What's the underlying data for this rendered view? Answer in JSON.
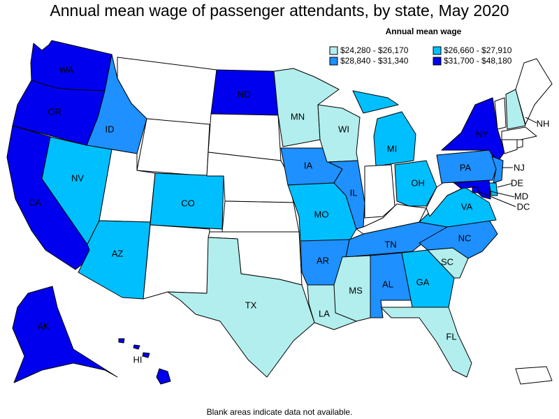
{
  "title": "Annual mean wage of passenger attendants, by state, May 2020",
  "footnote": "Blank areas indicate data not available.",
  "legend": {
    "title": "Annual mean wage",
    "bins": [
      {
        "label": "$24,280 - $26,170",
        "color": "#b2eeee"
      },
      {
        "label": "$26,660 - $27,910",
        "color": "#00bfff"
      },
      {
        "label": "$28,840 - $31,340",
        "color": "#1e90ff"
      },
      {
        "label": "$31,700 - $48,180",
        "color": "#0000ee"
      }
    ]
  },
  "colors": {
    "no_data": "#ffffff",
    "border": "#000000"
  },
  "states": {
    "WA": {
      "label": "WA",
      "bin": 3
    },
    "OR": {
      "label": "OR",
      "bin": 3
    },
    "CA": {
      "label": "CA",
      "bin": 3
    },
    "AK": {
      "label": "AK",
      "bin": 3
    },
    "HI": {
      "label": "HI",
      "bin": 3
    },
    "ND": {
      "label": "ND",
      "bin": 3
    },
    "NY": {
      "label": "NY",
      "bin": 3
    },
    "MD": {
      "label": "MD",
      "bin": 3
    },
    "DC": {
      "label": "DC",
      "bin": 3
    },
    "ID": {
      "label": "ID",
      "bin": 2
    },
    "IA": {
      "label": "IA",
      "bin": 2
    },
    "IL": {
      "label": "IL",
      "bin": 2
    },
    "AR": {
      "label": "AR",
      "bin": 2
    },
    "TN": {
      "label": "TN",
      "bin": 2
    },
    "AL": {
      "label": "AL",
      "bin": 2
    },
    "NC": {
      "label": "NC",
      "bin": 2
    },
    "PA": {
      "label": "PA",
      "bin": 2
    },
    "NJ": {
      "label": "NJ",
      "bin": 2
    },
    "NV": {
      "label": "NV",
      "bin": 1
    },
    "AZ": {
      "label": "AZ",
      "bin": 1
    },
    "CO": {
      "label": "CO",
      "bin": 1
    },
    "MO": {
      "label": "MO",
      "bin": 1
    },
    "MI": {
      "label": "MI",
      "bin": 1
    },
    "OH": {
      "label": "OH",
      "bin": 1
    },
    "VA": {
      "label": "VA",
      "bin": 1
    },
    "GA": {
      "label": "GA",
      "bin": 1
    },
    "DE": {
      "label": "DE",
      "bin": 1
    },
    "MN": {
      "label": "MN",
      "bin": 0
    },
    "WI": {
      "label": "WI",
      "bin": 0
    },
    "TX": {
      "label": "TX",
      "bin": 0
    },
    "LA": {
      "label": "LA",
      "bin": 0
    },
    "MS": {
      "label": "MS",
      "bin": 0
    },
    "SC": {
      "label": "SC",
      "bin": 0
    },
    "FL": {
      "label": "FL",
      "bin": 0
    },
    "NH": {
      "label": "NH",
      "bin": 0
    },
    "MT": {
      "bin": null
    },
    "WY": {
      "bin": null
    },
    "UT": {
      "bin": null
    },
    "NM": {
      "bin": null
    },
    "SD": {
      "bin": null
    },
    "NE": {
      "bin": null
    },
    "KS": {
      "bin": null
    },
    "OK": {
      "bin": null
    },
    "IN": {
      "bin": null
    },
    "KY": {
      "bin": null
    },
    "WV": {
      "bin": null
    },
    "ME": {
      "bin": null
    },
    "VT": {
      "bin": null
    },
    "MA": {
      "bin": null
    },
    "CT": {
      "bin": null
    },
    "RI": {
      "bin": null
    },
    "PR": {
      "bin": null
    }
  }
}
